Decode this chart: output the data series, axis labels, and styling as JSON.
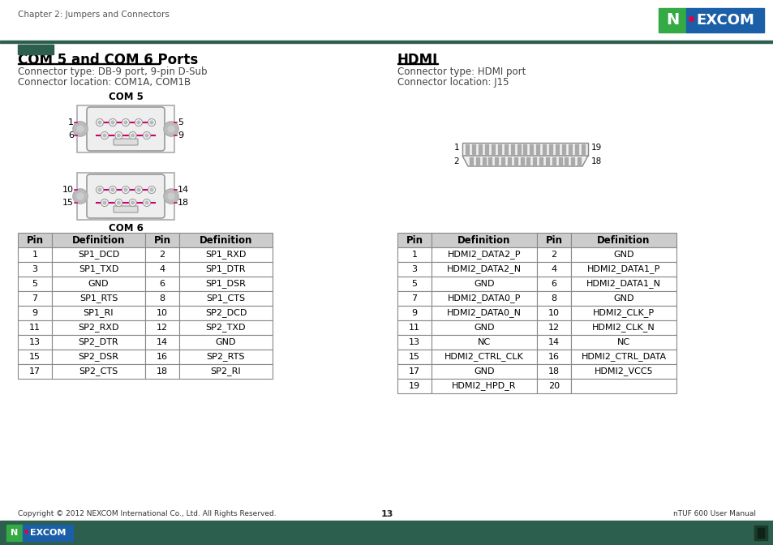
{
  "page_title": "Chapter 2: Jumpers and Connectors",
  "page_number": "13",
  "footer_copyright": "Copyright © 2012 NEXCOM International Co., Ltd. All Rights Reserved.",
  "footer_right": "nTUF 600 User Manual",
  "section1_title": "COM 5 and COM 6 Ports",
  "section1_sub1": "Connector type: DB-9 port, 9-pin D-Sub",
  "section1_sub2": "Connector location: COM1A, COM1B",
  "section2_title": "HDMI",
  "section2_sub1": "Connector type: HDMI port",
  "section2_sub2": "Connector location: J15",
  "com_table_headers": [
    "Pin",
    "Definition",
    "Pin",
    "Definition"
  ],
  "com_table_data": [
    [
      "1",
      "SP1_DCD",
      "2",
      "SP1_RXD"
    ],
    [
      "3",
      "SP1_TXD",
      "4",
      "SP1_DTR"
    ],
    [
      "5",
      "GND",
      "6",
      "SP1_DSR"
    ],
    [
      "7",
      "SP1_RTS",
      "8",
      "SP1_CTS"
    ],
    [
      "9",
      "SP1_RI",
      "10",
      "SP2_DCD"
    ],
    [
      "11",
      "SP2_RXD",
      "12",
      "SP2_TXD"
    ],
    [
      "13",
      "SP2_DTR",
      "14",
      "GND"
    ],
    [
      "15",
      "SP2_DSR",
      "16",
      "SP2_RTS"
    ],
    [
      "17",
      "SP2_CTS",
      "18",
      "SP2_RI"
    ]
  ],
  "hdmi_table_headers": [
    "Pin",
    "Definition",
    "Pin",
    "Definition"
  ],
  "hdmi_table_data": [
    [
      "1",
      "HDMI2_DATA2_P",
      "2",
      "GND"
    ],
    [
      "3",
      "HDMI2_DATA2_N",
      "4",
      "HDMI2_DATA1_P"
    ],
    [
      "5",
      "GND",
      "6",
      "HDMI2_DATA1_N"
    ],
    [
      "7",
      "HDMI2_DATA0_P",
      "8",
      "GND"
    ],
    [
      "9",
      "HDMI2_DATA0_N",
      "10",
      "HDMI2_CLK_P"
    ],
    [
      "11",
      "GND",
      "12",
      "HDMI2_CLK_N"
    ],
    [
      "13",
      "NC",
      "14",
      "NC"
    ],
    [
      "15",
      "HDMI2_CTRL_CLK",
      "16",
      "HDMI2_CTRL_DATA"
    ],
    [
      "17",
      "GND",
      "18",
      "HDMI2_VCC5"
    ],
    [
      "19",
      "HDMI2_HPD_R",
      "20",
      ""
    ]
  ],
  "dark_green": "#2d5f4e",
  "nexcom_blue": "#1a5fa8",
  "nexcom_ngreen": "#33aa44",
  "nexcom_red": "#e8003d",
  "connector_pink": "#cc0077",
  "table_header_bg": "#cccccc",
  "table_border": "#888888"
}
